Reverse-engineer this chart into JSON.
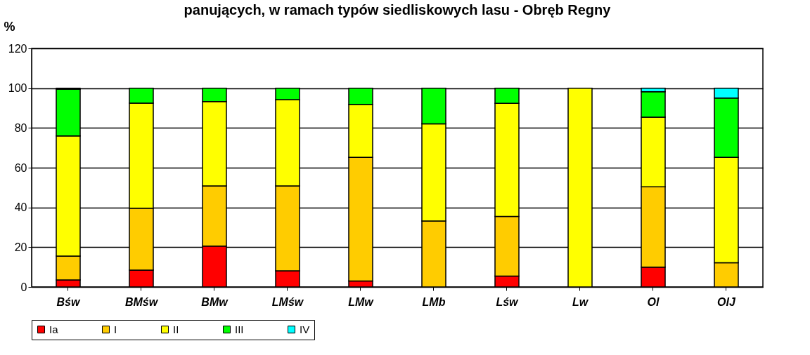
{
  "chart_data": {
    "type": "bar",
    "title": "panujących, w ramach typów siedliskowych lasu - Obręb Regny",
    "ylabel": "%",
    "categories": [
      "Bśw",
      "BMśw",
      "BMw",
      "LMśw",
      "LMw",
      "LMb",
      "Lśw",
      "Lw",
      "Ol",
      "OlJ"
    ],
    "series": [
      {
        "name": "Ia",
        "color": "#ff0000",
        "values": [
          3.5,
          8.5,
          20.6,
          8.1,
          3.0,
          0,
          5.5,
          0,
          10.0,
          0
        ]
      },
      {
        "name": "I",
        "color": "#ffcc00",
        "values": [
          12.0,
          31.1,
          30.2,
          42.7,
          62.2,
          33.2,
          30.0,
          0,
          40.4,
          12.2
        ]
      },
      {
        "name": "II",
        "color": "#ffff00",
        "values": [
          60.5,
          52.9,
          42.5,
          43.4,
          26.6,
          48.9,
          56.9,
          100,
          35.0,
          53.0
        ]
      },
      {
        "name": "III",
        "color": "#00ff00",
        "values": [
          23.4,
          7.5,
          6.7,
          5.8,
          8.2,
          17.9,
          7.6,
          0,
          12.8,
          29.8
        ]
      },
      {
        "name": "IV",
        "color": "#00ffff",
        "values": [
          0.6,
          0,
          0,
          0,
          0,
          0,
          0,
          0,
          1.8,
          5.0
        ]
      }
    ],
    "stacked": true,
    "ylim": [
      0,
      120
    ],
    "yticks": [
      0,
      20,
      40,
      60,
      80,
      100,
      120
    ],
    "grid": "y",
    "legend": "bottom"
  }
}
